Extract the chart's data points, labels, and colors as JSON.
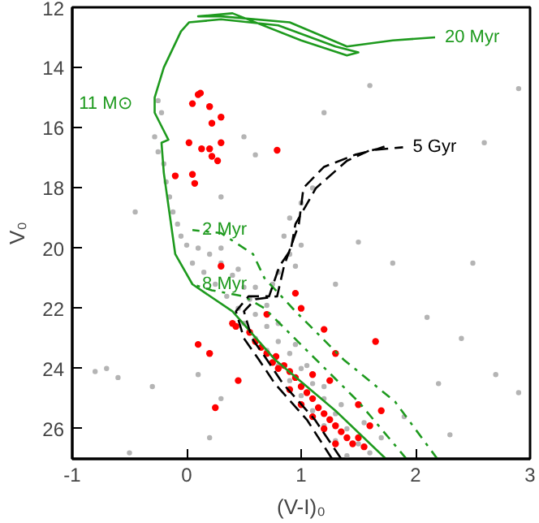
{
  "chart_data": {
    "type": "scatter",
    "xlabel": "(V-I)₀",
    "ylabel": "V₀",
    "xlim": [
      -1,
      3
    ],
    "ylim": [
      27,
      12
    ],
    "xticks": [
      -1,
      0,
      1,
      2,
      3
    ],
    "yticks": [
      12,
      14,
      16,
      18,
      20,
      22,
      24,
      26
    ],
    "annotations": [
      {
        "text": "11 M⊙",
        "x": -0.28,
        "y": 15.2
      }
    ],
    "series": [
      {
        "marker": "circle",
        "color": "#b4b4b4",
        "x": [
          -0.25,
          -0.22,
          -0.28,
          -0.25,
          -0.2,
          -0.18,
          -0.15,
          -0.12,
          -0.08,
          -0.05,
          0.0,
          0.1,
          0.2,
          0.05,
          0.3,
          0.15,
          0.4,
          0.25,
          0.5,
          0.35,
          0.55,
          0.45,
          0.6,
          0.5,
          0.7,
          0.6,
          0.8,
          0.7,
          0.9,
          0.8,
          1.0,
          0.9,
          1.1,
          1.0,
          1.2,
          1.1,
          1.3,
          1.2,
          1.4,
          1.3,
          1.5,
          1.6,
          1.4,
          1.7,
          1.55,
          1.35,
          1.2,
          1.05,
          0.95,
          0.8,
          0.7,
          0.6,
          0.45,
          0.3,
          0.85,
          0.9,
          0.8,
          0.95,
          1.0,
          0.9,
          1.0,
          1.1,
          0.75,
          -0.7,
          -0.6,
          -0.3,
          0.1,
          0.3,
          -0.45,
          0.5,
          1.2,
          1.8,
          2.1,
          2.4,
          2.7,
          2.5,
          2.2,
          2.9,
          1.9,
          2.3,
          1.6,
          0.6,
          0.3,
          2.6,
          2.9,
          -0.8,
          -0.5,
          0.2,
          1.5,
          1.3
        ],
        "values": [
          15.1,
          15.5,
          16.3,
          16.8,
          17.2,
          17.8,
          18.3,
          18.8,
          19.2,
          19.6,
          19.9,
          20.0,
          20.2,
          20.5,
          20.5,
          20.8,
          20.9,
          21.2,
          21.3,
          21.6,
          21.7,
          22.0,
          22.2,
          22.5,
          22.6,
          23.0,
          23.1,
          23.4,
          23.5,
          23.9,
          24.0,
          24.4,
          24.5,
          24.9,
          25.0,
          25.4,
          25.5,
          25.9,
          26.0,
          26.4,
          26.5,
          26.8,
          26.9,
          26.3,
          25.8,
          25.2,
          24.6,
          23.9,
          23.2,
          22.5,
          21.9,
          21.3,
          20.7,
          20.0,
          19.6,
          20.2,
          20.8,
          20.6,
          19.9,
          19.0,
          18.5,
          18.0,
          21.2,
          24.0,
          24.3,
          24.6,
          24.2,
          25.0,
          18.8,
          16.3,
          15.5,
          20.5,
          22.3,
          23.0,
          24.2,
          20.5,
          24.5,
          24.8,
          25.6,
          26.2,
          14.6,
          16.9,
          18.3,
          16.5,
          14.7,
          24.1,
          26.8,
          26.3,
          19.8,
          21.2
        ]
      },
      {
        "marker": "circle",
        "color": "#ff0000",
        "x": [
          0.1,
          0.12,
          0.05,
          0.2,
          0.22,
          0.3,
          0.02,
          0.13,
          0.2,
          0.22,
          0.3,
          0.27,
          -0.1,
          0.05,
          0.07,
          0.79,
          0.3,
          0.4,
          0.43,
          0.1,
          0.2,
          0.45,
          0.25,
          0.55,
          0.6,
          0.65,
          0.7,
          0.75,
          0.8,
          0.78,
          0.85,
          0.9,
          0.95,
          1.0,
          1.05,
          1.1,
          1.15,
          1.2,
          1.25,
          1.3,
          1.35,
          1.4,
          1.45,
          1.5,
          1.1,
          1.2,
          1.0,
          0.9,
          1.3,
          1.55,
          1.6,
          1.25,
          1.0,
          0.95,
          1.3,
          1.65,
          1.2,
          1.5,
          1.7,
          1.1,
          0.7
        ],
        "values": [
          14.9,
          14.85,
          15.2,
          15.3,
          15.85,
          15.65,
          16.5,
          16.7,
          16.7,
          16.95,
          16.5,
          17.1,
          17.6,
          17.55,
          17.85,
          16.75,
          20.6,
          22.5,
          22.6,
          23.2,
          23.5,
          24.4,
          25.3,
          22.8,
          23.1,
          23.3,
          23.5,
          23.8,
          24.0,
          23.6,
          23.9,
          24.1,
          24.3,
          24.6,
          24.8,
          25.0,
          25.3,
          25.5,
          25.7,
          25.9,
          26.1,
          26.3,
          26.5,
          26.3,
          25.6,
          26.0,
          25.2,
          24.7,
          26.5,
          26.6,
          25.9,
          24.4,
          22.0,
          21.5,
          23.5,
          23.1,
          22.7,
          25.2,
          25.4,
          24.2,
          22.2
        ]
      },
      {
        "type": "line",
        "name": "20 Myr",
        "color": "#1e9a1e",
        "line_style": "solid",
        "x": [
          1.74,
          1.3,
          0.77,
          0.4,
          0.05,
          -0.1,
          -0.2,
          -0.22,
          -0.16,
          -0.2,
          -0.28,
          -0.28,
          -0.2,
          -0.05,
          0.02,
          0.3,
          0.8,
          1.3,
          1.5,
          1.4,
          1.0,
          0.4,
          0.1,
          0.3,
          0.9,
          1.4,
          1.8,
          2.17
        ],
        "values": [
          27.0,
          25.4,
          23.7,
          22.1,
          21.2,
          20.2,
          17.5,
          16.5,
          16.4,
          16.1,
          15.5,
          15.0,
          14.0,
          12.8,
          12.5,
          12.4,
          12.6,
          13.3,
          13.5,
          13.6,
          13.1,
          12.2,
          12.3,
          12.3,
          12.5,
          13.3,
          13.1,
          13.0
        ]
      },
      {
        "type": "line",
        "name": "2 Myr",
        "color": "#1e9a1e",
        "line_style": "dashdot",
        "x": [
          2.19,
          1.82,
          1.37,
          0.95,
          0.68,
          0.58,
          0.3,
          0.05
        ],
        "values": [
          27.0,
          25.1,
          23.7,
          22.1,
          21.0,
          20.2,
          19.5,
          19.4
        ]
      },
      {
        "type": "line",
        "name": "8 Myr",
        "color": "#1e9a1e",
        "line_style": "dashdot",
        "x": [
          1.92,
          1.5,
          1.05,
          0.68,
          0.5,
          0.22,
          0.05
        ],
        "values": [
          27.0,
          25.1,
          23.4,
          22.0,
          21.6,
          21.4,
          21.2
        ]
      },
      {
        "type": "line",
        "color": "#000000",
        "line_style": "dashed",
        "x": [
          1.35,
          1.12,
          0.84,
          0.7,
          0.57,
          0.5,
          0.6,
          0.79,
          0.85,
          0.98,
          1.02,
          1.2,
          1.47,
          1.67,
          1.75
        ],
        "values": [
          27.0,
          25.7,
          24.5,
          23.7,
          23.0,
          22.1,
          21.7,
          21.6,
          20.6,
          19.2,
          18.0,
          17.3,
          16.9,
          16.7,
          16.6
        ]
      },
      {
        "type": "line",
        "name": "5 Gyr",
        "color": "#000000",
        "line_style": "dashed",
        "x": [
          1.27,
          1.05,
          0.77,
          0.63,
          0.5,
          0.43,
          0.54,
          0.72,
          0.81,
          0.91,
          0.95,
          1.13,
          1.4,
          1.6,
          1.89
        ],
        "values": [
          27.0,
          25.7,
          24.5,
          23.7,
          23.0,
          22.1,
          21.6,
          21.6,
          20.6,
          20.05,
          19.2,
          18.0,
          17.1,
          16.75,
          16.65
        ]
      }
    ]
  }
}
